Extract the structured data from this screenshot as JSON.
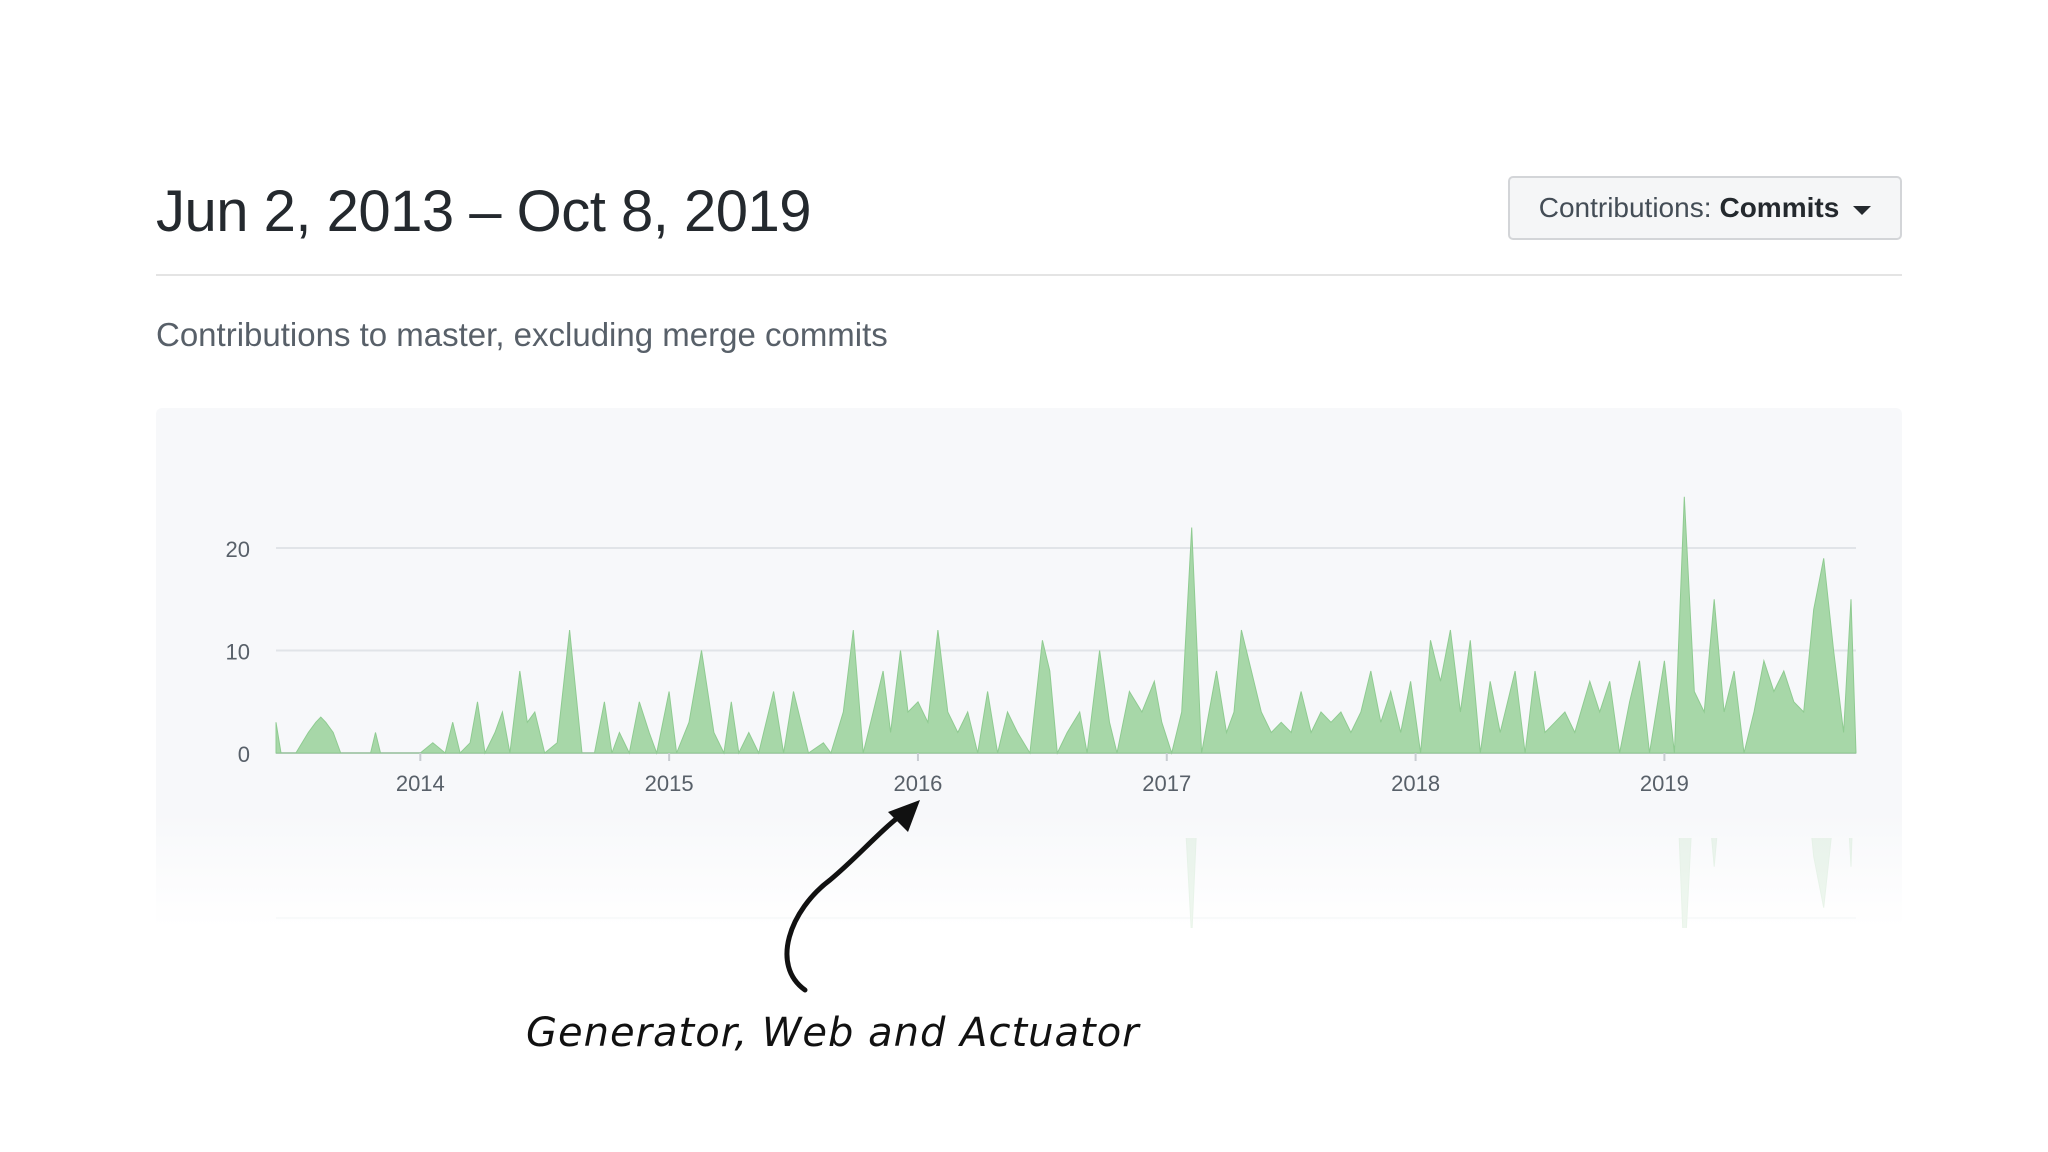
{
  "header": {
    "date_range": "Jun 2, 2013 – Oct 8, 2019",
    "dropdown_prefix": "Contributions:",
    "dropdown_value": "Commits"
  },
  "subtitle": "Contributions to master, excluding merge commits",
  "annotation": "Generator, Web and Actuator",
  "colors": {
    "area": "#a7d7a8",
    "grid": "#e1e4e8",
    "text": "#586069"
  },
  "chart_data": {
    "type": "area",
    "title": "",
    "xlabel": "",
    "ylabel": "",
    "x_range": [
      2013.42,
      2019.77
    ],
    "ylim": [
      0,
      25
    ],
    "yticks": [
      0,
      10,
      20
    ],
    "xticks": [
      2014,
      2015,
      2016,
      2017,
      2018,
      2019
    ],
    "grid": true,
    "series": [
      {
        "points": [
          [
            2013.42,
            3
          ],
          [
            2013.44,
            0
          ],
          [
            2013.5,
            0
          ],
          [
            2013.55,
            2
          ],
          [
            2013.58,
            3
          ],
          [
            2013.6,
            3.5
          ],
          [
            2013.62,
            3
          ],
          [
            2013.65,
            2
          ],
          [
            2013.68,
            0
          ],
          [
            2013.8,
            0
          ],
          [
            2013.82,
            2
          ],
          [
            2013.84,
            0
          ],
          [
            2014.0,
            0
          ],
          [
            2014.05,
            1
          ],
          [
            2014.1,
            0
          ],
          [
            2014.13,
            3
          ],
          [
            2014.16,
            0
          ],
          [
            2014.2,
            1
          ],
          [
            2014.23,
            5
          ],
          [
            2014.26,
            0
          ],
          [
            2014.3,
            2
          ],
          [
            2014.33,
            4
          ],
          [
            2014.36,
            0
          ],
          [
            2014.4,
            8
          ],
          [
            2014.43,
            3
          ],
          [
            2014.46,
            4
          ],
          [
            2014.5,
            0
          ],
          [
            2014.55,
            1
          ],
          [
            2014.6,
            12
          ],
          [
            2014.65,
            0
          ],
          [
            2014.7,
            0
          ],
          [
            2014.74,
            5
          ],
          [
            2014.77,
            0
          ],
          [
            2014.8,
            2
          ],
          [
            2014.84,
            0
          ],
          [
            2014.88,
            5
          ],
          [
            2014.92,
            2
          ],
          [
            2014.95,
            0
          ],
          [
            2015.0,
            6
          ],
          [
            2015.03,
            0
          ],
          [
            2015.08,
            3
          ],
          [
            2015.13,
            10
          ],
          [
            2015.18,
            2
          ],
          [
            2015.22,
            0
          ],
          [
            2015.25,
            5
          ],
          [
            2015.28,
            0
          ],
          [
            2015.32,
            2
          ],
          [
            2015.36,
            0
          ],
          [
            2015.42,
            6
          ],
          [
            2015.46,
            0
          ],
          [
            2015.5,
            6
          ],
          [
            2015.53,
            3
          ],
          [
            2015.56,
            0
          ],
          [
            2015.62,
            1
          ],
          [
            2015.65,
            0
          ],
          [
            2015.7,
            4
          ],
          [
            2015.74,
            12
          ],
          [
            2015.78,
            0
          ],
          [
            2015.82,
            4
          ],
          [
            2015.86,
            8
          ],
          [
            2015.89,
            2
          ],
          [
            2015.93,
            10
          ],
          [
            2015.96,
            4
          ],
          [
            2016.0,
            5
          ],
          [
            2016.04,
            3
          ],
          [
            2016.08,
            12
          ],
          [
            2016.12,
            4
          ],
          [
            2016.16,
            2
          ],
          [
            2016.2,
            4
          ],
          [
            2016.24,
            0
          ],
          [
            2016.28,
            6
          ],
          [
            2016.32,
            0
          ],
          [
            2016.36,
            4
          ],
          [
            2016.4,
            2
          ],
          [
            2016.45,
            0
          ],
          [
            2016.5,
            11
          ],
          [
            2016.53,
            8
          ],
          [
            2016.56,
            0
          ],
          [
            2016.6,
            2
          ],
          [
            2016.65,
            4
          ],
          [
            2016.68,
            0
          ],
          [
            2016.73,
            10
          ],
          [
            2016.77,
            3
          ],
          [
            2016.8,
            0
          ],
          [
            2016.85,
            6
          ],
          [
            2016.9,
            4
          ],
          [
            2016.95,
            7
          ],
          [
            2016.98,
            3
          ],
          [
            2017.02,
            0
          ],
          [
            2017.06,
            4
          ],
          [
            2017.1,
            22
          ],
          [
            2017.14,
            0
          ],
          [
            2017.2,
            8
          ],
          [
            2017.24,
            2
          ],
          [
            2017.27,
            4
          ],
          [
            2017.3,
            12
          ],
          [
            2017.34,
            8
          ],
          [
            2017.38,
            4
          ],
          [
            2017.42,
            2
          ],
          [
            2017.46,
            3
          ],
          [
            2017.5,
            2
          ],
          [
            2017.54,
            6
          ],
          [
            2017.58,
            2
          ],
          [
            2017.62,
            4
          ],
          [
            2017.66,
            3
          ],
          [
            2017.7,
            4
          ],
          [
            2017.74,
            2
          ],
          [
            2017.78,
            4
          ],
          [
            2017.82,
            8
          ],
          [
            2017.86,
            3
          ],
          [
            2017.9,
            6
          ],
          [
            2017.94,
            2
          ],
          [
            2017.98,
            7
          ],
          [
            2018.02,
            0
          ],
          [
            2018.06,
            11
          ],
          [
            2018.1,
            7
          ],
          [
            2018.14,
            12
          ],
          [
            2018.18,
            4
          ],
          [
            2018.22,
            11
          ],
          [
            2018.26,
            0
          ],
          [
            2018.3,
            7
          ],
          [
            2018.34,
            2
          ],
          [
            2018.4,
            8
          ],
          [
            2018.44,
            0
          ],
          [
            2018.48,
            8
          ],
          [
            2018.52,
            2
          ],
          [
            2018.56,
            3
          ],
          [
            2018.6,
            4
          ],
          [
            2018.64,
            2
          ],
          [
            2018.7,
            7
          ],
          [
            2018.74,
            4
          ],
          [
            2018.78,
            7
          ],
          [
            2018.82,
            0
          ],
          [
            2018.86,
            5
          ],
          [
            2018.9,
            9
          ],
          [
            2018.94,
            0
          ],
          [
            2019.0,
            9
          ],
          [
            2019.04,
            0
          ],
          [
            2019.08,
            25
          ],
          [
            2019.12,
            6
          ],
          [
            2019.16,
            4
          ],
          [
            2019.2,
            15
          ],
          [
            2019.24,
            4
          ],
          [
            2019.28,
            8
          ],
          [
            2019.32,
            0
          ],
          [
            2019.36,
            4
          ],
          [
            2019.4,
            9
          ],
          [
            2019.44,
            6
          ],
          [
            2019.48,
            8
          ],
          [
            2019.52,
            5
          ],
          [
            2019.56,
            4
          ],
          [
            2019.6,
            14
          ],
          [
            2019.64,
            19
          ],
          [
            2019.68,
            10
          ],
          [
            2019.72,
            2
          ],
          [
            2019.75,
            15
          ],
          [
            2019.77,
            0
          ]
        ]
      }
    ]
  }
}
